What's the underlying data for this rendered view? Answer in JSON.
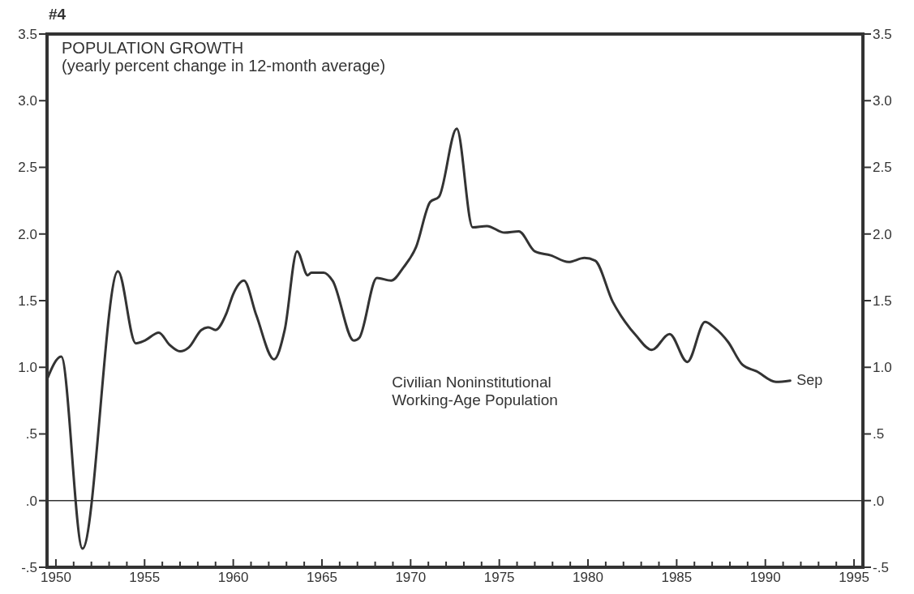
{
  "chart_data": {
    "type": "line",
    "title": "POPULATION GROWTH",
    "subtitle": "(yearly percent change in 12-month average)",
    "annotations": [
      "#4",
      "Civilian Noninstitutional\nWorking-Age Population",
      {
        "text": "Sep",
        "x": 1991.4,
        "y": 0.9
      }
    ],
    "x": [
      1949.5,
      1950.3,
      1951.5,
      1953.5,
      1954.5,
      1955.0,
      1955.8,
      1956.4,
      1957.0,
      1957.5,
      1958.2,
      1958.6,
      1959.0,
      1959.6,
      1960.0,
      1960.6,
      1961.3,
      1962.3,
      1962.9,
      1963.6,
      1964.2,
      1964.4,
      1965.1,
      1965.6,
      1966.8,
      1967.1,
      1968.1,
      1968.9,
      1969.6,
      1970.3,
      1971.1,
      1971.6,
      1972.6,
      1973.5,
      1974.3,
      1975.3,
      1976.1,
      1977.0,
      1977.9,
      1978.9,
      1979.8,
      1980.4,
      1981.4,
      1982.1,
      1982.7,
      1983.6,
      1984.6,
      1985.6,
      1986.6,
      1987.1,
      1987.9,
      1988.7,
      1989.5,
      1990.6,
      1991.4
    ],
    "series": [
      {
        "color": "#333333",
        "values": [
          0.91,
          1.08,
          -0.36,
          1.72,
          1.18,
          1.2,
          1.26,
          1.17,
          1.12,
          1.15,
          1.28,
          1.3,
          1.28,
          1.4,
          1.55,
          1.65,
          1.39,
          1.06,
          1.28,
          1.87,
          1.69,
          1.71,
          1.71,
          1.65,
          1.2,
          1.22,
          1.67,
          1.65,
          1.75,
          1.9,
          2.24,
          2.28,
          2.79,
          2.05,
          2.06,
          2.01,
          2.02,
          1.87,
          1.84,
          1.79,
          1.82,
          1.8,
          1.49,
          1.34,
          1.24,
          1.13,
          1.25,
          1.04,
          1.34,
          1.3,
          1.19,
          1.02,
          0.97,
          0.89,
          0.9
        ]
      }
    ],
    "xlim": [
      1949.5,
      1995.5
    ],
    "xticks": [
      1950,
      {
        "value": 1951,
        "label": null
      },
      {
        "value": 1952,
        "label": null
      },
      {
        "value": 1953,
        "label": null
      },
      {
        "value": 1954,
        "label": null
      },
      1955,
      {
        "value": 1956,
        "label": null
      },
      {
        "value": 1957,
        "label": null
      },
      {
        "value": 1958,
        "label": null
      },
      {
        "value": 1959,
        "label": null
      },
      1960,
      {
        "value": 1961,
        "label": null
      },
      {
        "value": 1962,
        "label": null
      },
      {
        "value": 1963,
        "label": null
      },
      {
        "value": 1964,
        "label": null
      },
      1965,
      {
        "value": 1966,
        "label": null
      },
      {
        "value": 1967,
        "label": null
      },
      {
        "value": 1968,
        "label": null
      },
      {
        "value": 1969,
        "label": null
      },
      1970,
      {
        "value": 1971,
        "label": null
      },
      {
        "value": 1972,
        "label": null
      },
      {
        "value": 1973,
        "label": null
      },
      {
        "value": 1974,
        "label": null
      },
      1975,
      {
        "value": 1976,
        "label": null
      },
      {
        "value": 1977,
        "label": null
      },
      {
        "value": 1978,
        "label": null
      },
      {
        "value": 1979,
        "label": null
      },
      1980,
      {
        "value": 1981,
        "label": null
      },
      {
        "value": 1982,
        "label": null
      },
      {
        "value": 1983,
        "label": null
      },
      {
        "value": 1984,
        "label": null
      },
      1985,
      {
        "value": 1986,
        "label": null
      },
      {
        "value": 1987,
        "label": null
      },
      {
        "value": 1988,
        "label": null
      },
      {
        "value": 1989,
        "label": null
      },
      1990,
      {
        "value": 1991,
        "label": null
      },
      {
        "value": 1992,
        "label": null
      },
      {
        "value": 1993,
        "label": null
      },
      {
        "value": 1994,
        "label": null
      },
      1995
    ],
    "ylim": [
      -0.5,
      3.5
    ],
    "yticks": [
      {
        "value": -0.5,
        "label": "-.5"
      },
      {
        "value": 0,
        "label": ".0"
      },
      {
        "value": 0.5,
        "label": ".5"
      },
      {
        "value": 1,
        "label": "1.0"
      },
      1.5,
      {
        "value": 2,
        "label": "2.0"
      },
      2.5,
      {
        "value": 3,
        "label": "3.0"
      },
      3.5
    ],
    "y2lim": [
      -0.5,
      3.5
    ],
    "y2ticks": [
      {
        "value": -0.5,
        "label": "-.5"
      },
      {
        "value": 0,
        "label": ".0"
      },
      {
        "value": 0.5,
        "label": ".5"
      },
      {
        "value": 1,
        "label": "1.0"
      },
      1.5,
      {
        "value": 2,
        "label": "2.0"
      },
      2.5,
      {
        "value": 3,
        "label": "3.0"
      },
      3.5
    ],
    "ref_lines": [
      {
        "axis": "y",
        "value": 0,
        "color": "#333333"
      }
    ],
    "grid": false
  }
}
